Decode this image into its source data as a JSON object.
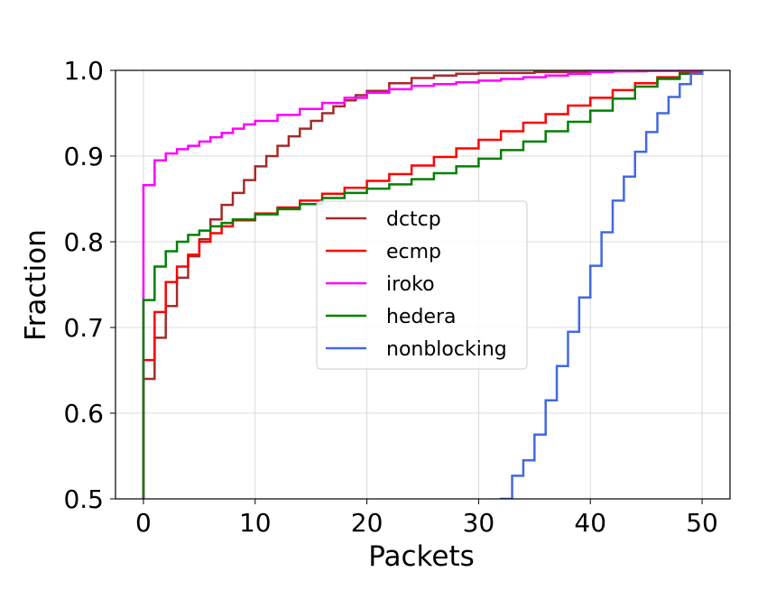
{
  "chart_data": {
    "type": "line",
    "step": true,
    "title": "",
    "xlabel": "Packets",
    "ylabel": "Fraction",
    "xlim": [
      -2.5,
      52.5
    ],
    "ylim": [
      0.5,
      1.0
    ],
    "xticks": [
      0,
      10,
      20,
      30,
      40,
      50
    ],
    "xtick_labels": [
      "0",
      "10",
      "20",
      "30",
      "40",
      "50"
    ],
    "yticks": [
      0.5,
      0.6,
      0.7,
      0.8,
      0.9,
      1.0
    ],
    "ytick_labels": [
      "0.5",
      "0.6",
      "0.7",
      "0.8",
      "0.9",
      "1.0"
    ],
    "grid": true,
    "legend": {
      "placement": "center"
    },
    "series": [
      {
        "name": "dctcp",
        "color": "#a52a2a",
        "x": [
          0,
          1,
          2,
          3,
          4,
          5,
          6,
          7,
          8,
          9,
          10,
          11,
          12,
          13,
          14,
          15,
          16,
          17,
          18,
          19,
          20,
          22,
          24,
          26,
          28,
          30,
          35,
          40,
          45,
          50
        ],
        "y": [
          0.64,
          0.688,
          0.725,
          0.758,
          0.783,
          0.803,
          0.826,
          0.843,
          0.857,
          0.872,
          0.888,
          0.9,
          0.912,
          0.923,
          0.932,
          0.941,
          0.95,
          0.958,
          0.965,
          0.971,
          0.976,
          0.985,
          0.991,
          0.994,
          0.996,
          0.997,
          0.998,
          0.999,
          0.9995,
          1.0
        ]
      },
      {
        "name": "ecmp",
        "color": "#ff0000",
        "x": [
          0,
          1,
          2,
          3,
          4,
          5,
          6,
          7,
          8,
          10,
          12,
          14,
          16,
          18,
          20,
          22,
          24,
          26,
          28,
          30,
          32,
          34,
          36,
          38,
          40,
          42,
          44,
          46,
          48,
          50
        ],
        "y": [
          0.662,
          0.718,
          0.753,
          0.771,
          0.785,
          0.8,
          0.81,
          0.818,
          0.825,
          0.833,
          0.84,
          0.848,
          0.856,
          0.863,
          0.871,
          0.879,
          0.889,
          0.899,
          0.909,
          0.919,
          0.929,
          0.939,
          0.949,
          0.959,
          0.968,
          0.977,
          0.985,
          0.992,
          0.997,
          1.0
        ]
      },
      {
        "name": "iroko",
        "color": "#ff00ff",
        "x": [
          0,
          1,
          2,
          3,
          4,
          5,
          6,
          7,
          8,
          9,
          10,
          12,
          14,
          16,
          18,
          20,
          22,
          24,
          26,
          28,
          30,
          32,
          34,
          36,
          38,
          40,
          42,
          44,
          46,
          48,
          50
        ],
        "y": [
          0.866,
          0.895,
          0.903,
          0.908,
          0.912,
          0.917,
          0.922,
          0.927,
          0.932,
          0.937,
          0.941,
          0.948,
          0.955,
          0.962,
          0.968,
          0.974,
          0.978,
          0.982,
          0.984,
          0.986,
          0.988,
          0.99,
          0.992,
          0.994,
          0.996,
          0.998,
          0.999,
          0.9995,
          1.0,
          1.0,
          1.0
        ]
      },
      {
        "name": "hedera",
        "color": "#008000",
        "x": [
          0,
          1,
          2,
          3,
          4,
          5,
          6,
          7,
          8,
          10,
          12,
          14,
          16,
          18,
          20,
          22,
          24,
          26,
          28,
          30,
          32,
          34,
          36,
          38,
          40,
          42,
          44,
          46,
          48,
          50
        ],
        "y": [
          0.732,
          0.771,
          0.789,
          0.8,
          0.808,
          0.813,
          0.818,
          0.822,
          0.826,
          0.832,
          0.838,
          0.844,
          0.851,
          0.857,
          0.862,
          0.867,
          0.873,
          0.88,
          0.888,
          0.897,
          0.907,
          0.917,
          0.929,
          0.94,
          0.953,
          0.967,
          0.981,
          0.99,
          0.996,
          1.0
        ]
      },
      {
        "name": "nonblocking",
        "color": "#4169e1",
        "x": [
          32,
          33,
          34,
          35,
          36,
          37,
          38,
          39,
          40,
          41,
          42,
          43,
          44,
          45,
          46,
          47,
          48,
          49,
          50
        ],
        "y": [
          0.5,
          0.527,
          0.545,
          0.575,
          0.615,
          0.655,
          0.695,
          0.735,
          0.772,
          0.811,
          0.848,
          0.876,
          0.905,
          0.928,
          0.95,
          0.969,
          0.984,
          0.996,
          1.0
        ]
      }
    ]
  }
}
